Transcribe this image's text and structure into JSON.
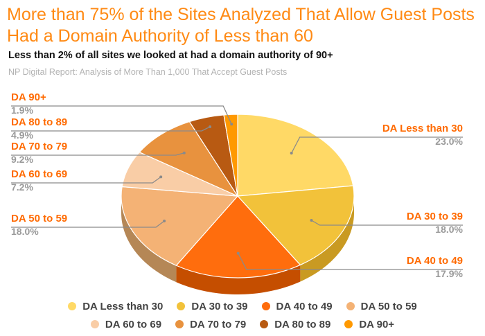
{
  "title": "More than 75% of the Sites Analyzed That Allow Guest Posts Had a Domain Authority of Less than 60",
  "subtitle": "Less than 2% of all sites we looked at had a domain authority of 90+",
  "source": "NP Digital Report: Analysis of More Than 1,000 That Accept Guest Posts",
  "colors": {
    "title": "#ff8a14",
    "label_name": "#ff6a00",
    "label_value": "#9a9a9a",
    "leader_line": "#8a8a8a"
  },
  "chart_data": {
    "type": "pie",
    "style": "3d",
    "legend_position": "bottom",
    "slices": [
      {
        "label": "DA Less than 30",
        "value": 23.0,
        "value_label": "23.0%",
        "color": "#ffd966",
        "side_color": "#d9b24a"
      },
      {
        "label": "DA 30 to 39",
        "value": 18.0,
        "value_label": "18.0%",
        "color": "#f2c23a",
        "side_color": "#c99a22"
      },
      {
        "label": "DA 40 to 49",
        "value": 17.9,
        "value_label": "17.9%",
        "color": "#ff6d0d",
        "side_color": "#c54e00"
      },
      {
        "label": "DA 50 to 59",
        "value": 18.0,
        "value_label": "18.0%",
        "color": "#f4b275",
        "side_color": "#b58756"
      },
      {
        "label": "DA 60 to 69",
        "value": 7.2,
        "value_label": "7.2%",
        "color": "#f9cda6",
        "side_color": "#c9a181"
      },
      {
        "label": "DA 70 to 79",
        "value": 9.2,
        "value_label": "9.2%",
        "color": "#e8923e",
        "side_color": "#b06a28"
      },
      {
        "label": "DA 80 to 89",
        "value": 4.9,
        "value_label": "4.9%",
        "color": "#b85a12",
        "side_color": "#8a400a"
      },
      {
        "label": "DA 90+",
        "value": 1.9,
        "value_label": "1.9%",
        "color": "#ff9900",
        "side_color": "#cc7a00"
      }
    ]
  }
}
